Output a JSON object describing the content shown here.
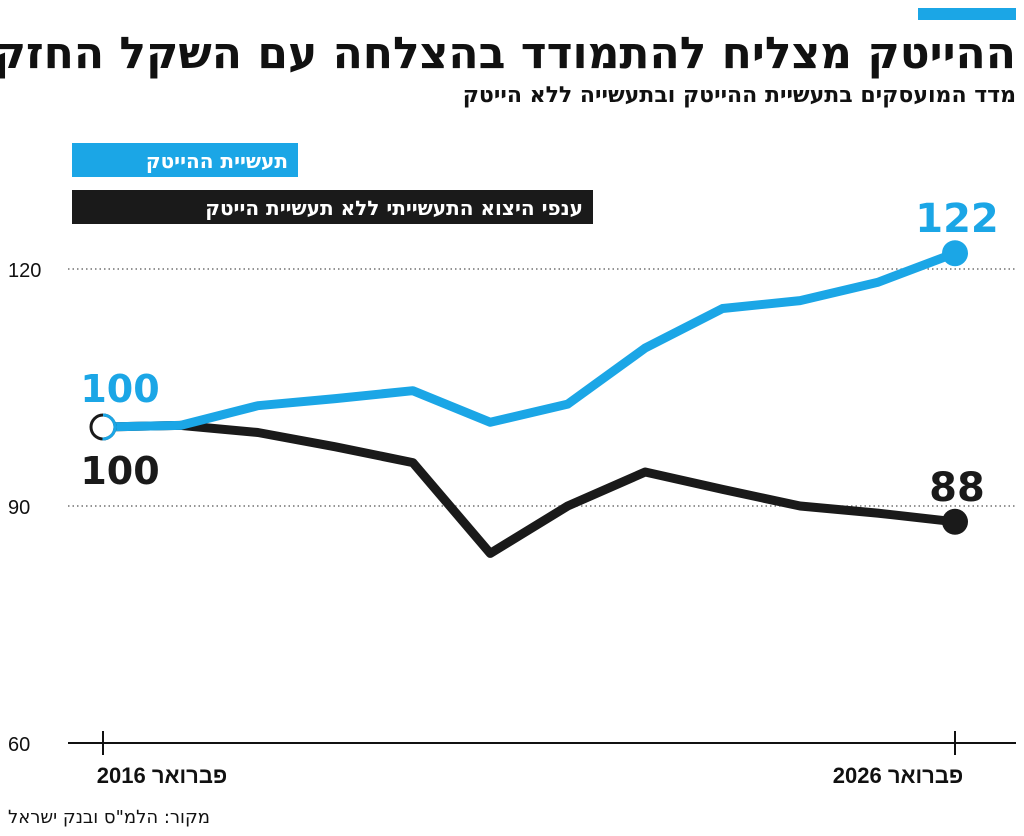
{
  "header": {
    "title": "ההייטק מצליח להתמודד בהצלחה עם השקל החזק",
    "subtitle": "מדד המועסקים בתעשיית ההייטק ובתעשייה ללא הייטק"
  },
  "source": "מקור: הלמ\"ס ובנק ישראל",
  "colors": {
    "accent": "#1ba6e6",
    "dark": "#1a1a1a",
    "grid": "#555555"
  },
  "chart_data": {
    "type": "line",
    "x": [
      "פברואר 2016",
      "",
      "",
      "",
      "",
      "",
      "",
      "",
      "",
      "",
      "",
      "פברואר 2026"
    ],
    "x_tick_labels": [
      "פברואר 2016",
      "פברואר 2026"
    ],
    "ylim": [
      60,
      124
    ],
    "y_ticks": [
      60,
      90,
      120
    ],
    "grid": "horizontal dotted at 90 and 120",
    "legend_position": "top-left",
    "series": [
      {
        "name": "תעשיית ההייטק",
        "color": "#1ba6e6",
        "values": [
          100,
          100.2,
          102.7,
          103.6,
          104.6,
          100.6,
          102.9,
          110.0,
          115.0,
          116.0,
          118.3,
          122
        ],
        "start_label": "100",
        "end_label": "122"
      },
      {
        "name": "ענפי היצוא התעשייתי ללא תעשיית הייטק",
        "color": "#1a1a1a",
        "values": [
          100,
          100.2,
          99.3,
          97.5,
          95.5,
          84.0,
          90.0,
          94.3,
          92.1,
          90.0,
          89.1,
          88
        ],
        "start_label": "100",
        "end_label": "88"
      }
    ]
  }
}
